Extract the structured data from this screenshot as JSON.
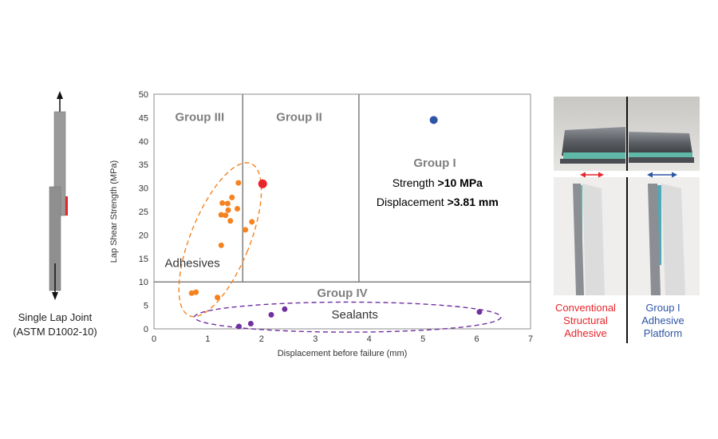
{
  "joint": {
    "caption_line1": "Single Lap Joint",
    "caption_line2": "(ASTM D1002-10)"
  },
  "chart_data": {
    "type": "scatter",
    "xlabel": "Displacement before failure (mm)",
    "ylabel": "Lap Shear Strength (MPa)",
    "xlim": [
      0,
      7
    ],
    "ylim": [
      0,
      50
    ],
    "xticks": [
      0,
      1,
      2,
      3,
      4,
      5,
      6,
      7
    ],
    "yticks": [
      0,
      5,
      10,
      15,
      20,
      25,
      30,
      35,
      40,
      45,
      50
    ],
    "grid": false,
    "region_dividers": {
      "x_split_low": 1.65,
      "x_split_high": 3.81,
      "y_split": 10
    },
    "groups": {
      "group_iii": "Group III",
      "group_ii": "Group II",
      "group_i": "Group I",
      "group_iv": "Group IV"
    },
    "criteria": {
      "strength_prefix": "Strength ",
      "strength_value": ">10 MPa",
      "displacement_prefix": "Displacement ",
      "displacement_value": ">3.81 mm"
    },
    "annotations": {
      "adhesives": "Adhesives",
      "sealants": "Sealants"
    },
    "colors": {
      "adhesives": "#F5821F",
      "sealants": "#7030A0",
      "highlight": "#E8252B",
      "group_i_point": "#2E55A5",
      "group_i_label": "#3DAA35",
      "group_label": "#7F7F7F",
      "divider": "#7F7F7F"
    },
    "series": [
      {
        "name": "Adhesives",
        "points": [
          [
            0.7,
            7.6
          ],
          [
            0.78,
            7.8
          ],
          [
            1.18,
            6.7
          ],
          [
            1.25,
            17.8
          ],
          [
            1.25,
            24.3
          ],
          [
            1.27,
            26.8
          ],
          [
            1.33,
            24.2
          ],
          [
            1.37,
            26.7
          ],
          [
            1.38,
            25.3
          ],
          [
            1.42,
            23.0
          ],
          [
            1.45,
            28.0
          ],
          [
            1.55,
            25.6
          ],
          [
            1.57,
            31.1
          ],
          [
            1.7,
            21.1
          ],
          [
            1.82,
            22.8
          ]
        ]
      },
      {
        "name": "Highlight",
        "points": [
          [
            2.02,
            30.9
          ]
        ]
      },
      {
        "name": "Sealants",
        "points": [
          [
            1.58,
            0.5
          ],
          [
            1.8,
            1.1
          ],
          [
            2.18,
            3.0
          ],
          [
            2.43,
            4.2
          ],
          [
            6.05,
            3.6
          ]
        ]
      },
      {
        "name": "Group I",
        "points": [
          [
            5.2,
            44.5
          ]
        ]
      }
    ],
    "ellipses": {
      "adhesives": {
        "cx": 1.23,
        "cy": 19.0,
        "rx_data": 0.55,
        "ry_data": 17.5
      },
      "sealants": {
        "cx": 3.6,
        "cy": 2.5,
        "rx_data": 2.85,
        "ry_data": 3.2
      }
    }
  },
  "photos": {
    "left_caption": [
      "Conventional",
      "Structural",
      "Adhesive"
    ],
    "right_caption": [
      "Group I",
      "Adhesive",
      "Platform"
    ],
    "left_color": "#E8252B",
    "right_color": "#2E55A5"
  }
}
